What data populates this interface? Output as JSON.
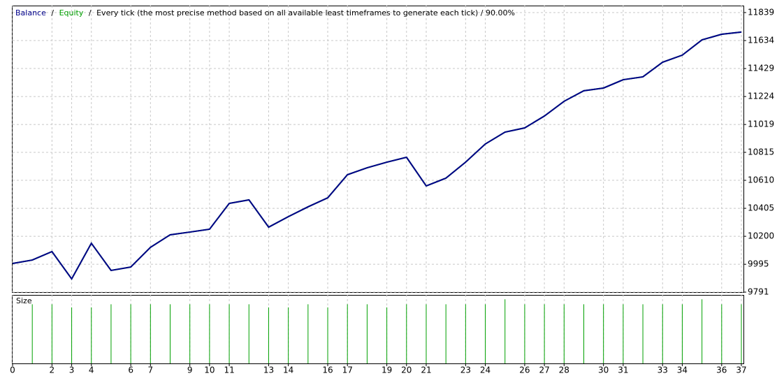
{
  "chart_data": {
    "type": "line",
    "separator": "/",
    "mode": "Every tick (the most precise method based on all available least timeframes to generate each tick) / 90.00%",
    "x": [
      0,
      1,
      2,
      3,
      4,
      5,
      6,
      7,
      8,
      9,
      10,
      11,
      12,
      13,
      14,
      15,
      16,
      17,
      18,
      19,
      20,
      21,
      22,
      23,
      24,
      25,
      26,
      27,
      28,
      29,
      30,
      31,
      32,
      33,
      34,
      35,
      36,
      37
    ],
    "series": [
      {
        "name": "Equity",
        "color": "#00a000",
        "values": [
          10001,
          10026,
          10088,
          9888,
          10149,
          9950,
          9975,
          10119,
          10211,
          10231,
          10252,
          10441,
          10467,
          10267,
          10344,
          10416,
          10482,
          10651,
          10702,
          10743,
          10779,
          10569,
          10626,
          10743,
          10876,
          10963,
          10994,
          11081,
          11189,
          11266,
          11286,
          11347,
          11368,
          11475,
          11527,
          11639,
          11680,
          11696
        ]
      },
      {
        "name": "Balance",
        "color": "#00008b",
        "values": [
          10001,
          10026,
          10088,
          9888,
          10149,
          9950,
          9975,
          10119,
          10211,
          10231,
          10252,
          10441,
          10467,
          10267,
          10344,
          10416,
          10482,
          10651,
          10702,
          10743,
          10779,
          10569,
          10626,
          10743,
          10876,
          10963,
          10994,
          11081,
          11189,
          11266,
          11286,
          11347,
          11368,
          11475,
          11527,
          11639,
          11680,
          11696
        ]
      }
    ],
    "xlim": [
      0,
      37
    ],
    "xticks": [
      0,
      2,
      3,
      4,
      6,
      7,
      9,
      10,
      11,
      13,
      14,
      16,
      17,
      19,
      20,
      21,
      23,
      24,
      26,
      27,
      28,
      30,
      31,
      33,
      34,
      36,
      37
    ],
    "ylim": [
      9791,
      11890
    ],
    "yticks": [
      9791,
      9995,
      10200,
      10405,
      10610,
      10815,
      11019,
      11224,
      11429,
      11634,
      11839
    ],
    "grid": true,
    "size_panel": {
      "title": "Size",
      "color": "#00a000",
      "x": [
        1,
        2,
        3,
        4,
        5,
        6,
        7,
        8,
        9,
        10,
        11,
        12,
        13,
        14,
        15,
        16,
        17,
        18,
        19,
        20,
        21,
        22,
        23,
        24,
        25,
        26,
        27,
        28,
        29,
        30,
        31,
        32,
        33,
        34,
        35,
        36,
        37
      ],
      "values": [
        0.95,
        0.95,
        0.9,
        0.9,
        0.95,
        0.95,
        0.95,
        0.95,
        0.95,
        0.95,
        0.95,
        0.95,
        0.9,
        0.9,
        0.95,
        0.9,
        0.95,
        0.95,
        0.9,
        0.95,
        0.95,
        0.95,
        0.95,
        0.95,
        1.03,
        0.95,
        0.95,
        0.95,
        0.95,
        0.95,
        0.95,
        0.95,
        0.95,
        0.95,
        1.03,
        0.95,
        0.95
      ],
      "ylim": [
        0,
        1.1
      ]
    }
  }
}
